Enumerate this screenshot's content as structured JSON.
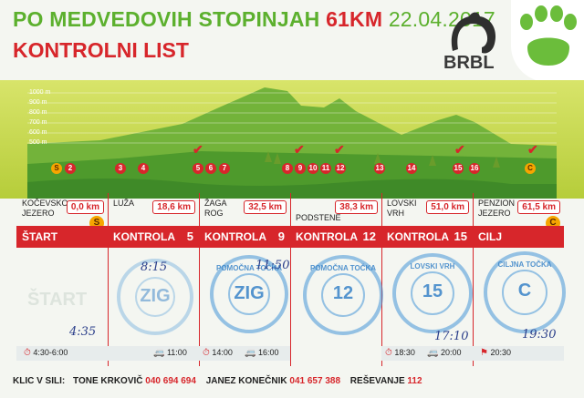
{
  "header": {
    "title_main": "PO MEDVEDOVIH STOPINJAH",
    "distance": "61KM",
    "date": "22.04.2017",
    "subtitle": "KONTROLNI LIST",
    "logo_text": "BRBL"
  },
  "profile": {
    "altitudes": [
      "1000 m",
      "900 m",
      "800 m",
      "700 m",
      "600 m",
      "500 m"
    ],
    "markers": [
      {
        "label": "S",
        "style": "orange"
      },
      {
        "label": "2",
        "style": "red"
      },
      {
        "label": "3",
        "style": "red"
      },
      {
        "label": "4",
        "style": "red"
      },
      {
        "label": "5",
        "style": "red"
      },
      {
        "label": "6",
        "style": "red"
      },
      {
        "label": "7",
        "style": "red"
      },
      {
        "label": "8",
        "style": "red"
      },
      {
        "label": "9",
        "style": "red"
      },
      {
        "label": "10",
        "style": "red"
      },
      {
        "label": "11",
        "style": "red"
      },
      {
        "label": "12",
        "style": "red"
      },
      {
        "label": "13",
        "style": "red"
      },
      {
        "label": "14",
        "style": "red"
      },
      {
        "label": "15",
        "style": "red"
      },
      {
        "label": "16",
        "style": "red"
      },
      {
        "label": "C",
        "style": "orange"
      }
    ]
  },
  "columns": [
    {
      "location": "KOČEVSKO JEZERO",
      "km": "0,0 km",
      "label": "ŠTART",
      "number": "",
      "badge": "S",
      "handwritten_top": "",
      "handwritten_bottom": "4:35",
      "faint": "ŠTART",
      "stamp": null
    },
    {
      "location": "LUŽA",
      "km": "18,6 km",
      "label": "KONTROLA",
      "number": "5",
      "badge": "",
      "handwritten_top": "8:15",
      "handwritten_bottom": "",
      "faint": "",
      "stamp": {
        "text": "",
        "num": "ZIG"
      }
    },
    {
      "location": "ŽAGA ROG",
      "km": "32,5 km",
      "label": "KONTROLA",
      "number": "9",
      "badge": "",
      "handwritten_top": "11:50",
      "handwritten_bottom": "",
      "faint": "",
      "stamp": {
        "text": "POMOČNA TOČKA",
        "num": "ZIG"
      }
    },
    {
      "location": "PODSTENE",
      "km": "38,3 km",
      "label": "KONTROLA",
      "number": "12",
      "badge": "",
      "handwritten_top": "",
      "handwritten_bottom": "",
      "faint": "",
      "stamp": {
        "text": "POMOČNA TOČKA",
        "num": "12"
      }
    },
    {
      "location": "LOVSKI VRH",
      "km": "51,0 km",
      "label": "KONTROLA",
      "number": "15",
      "badge": "",
      "handwritten_top": "",
      "handwritten_bottom": "17:10",
      "faint": "",
      "stamp": {
        "text": "LOVSKI VRH",
        "num": "15"
      }
    },
    {
      "location": "PENZION JEZERO",
      "km": "61,5 km",
      "label": "CILJ",
      "number": "",
      "badge": "C",
      "handwritten_top": "",
      "handwritten_bottom": "19:30",
      "faint": "",
      "stamp": {
        "text": "CILJNA TOČKA",
        "num": "C"
      }
    }
  ],
  "times": [
    {
      "text": "4:30-6:00",
      "icon": "stopwatch-icon"
    },
    {
      "text": "11:00",
      "icon": "car-icon"
    },
    {
      "text": "14:00",
      "icon": "stopwatch-icon"
    },
    {
      "text": "16:00",
      "icon": "car-icon"
    },
    {
      "text": "18:30",
      "icon": "stopwatch-icon"
    },
    {
      "text": "20:00",
      "icon": "car-icon"
    },
    {
      "text": "20:30",
      "icon": "finish-flag-icon"
    }
  ],
  "footer": {
    "label": "KLIC V SILI:",
    "contact1_name": "TONE KRKOVIČ",
    "contact1_phone": "040 694 694",
    "contact2_name": "JANEZ KONEČNIK",
    "contact2_phone": "041 657 388",
    "contact3_name": "REŠEVANJE",
    "contact3_phone": "112"
  },
  "colors": {
    "brand_green": "#5cb02e",
    "brand_red": "#d7262b",
    "stamp_blue": "#4696d7",
    "marker_orange": "#f6a500"
  }
}
